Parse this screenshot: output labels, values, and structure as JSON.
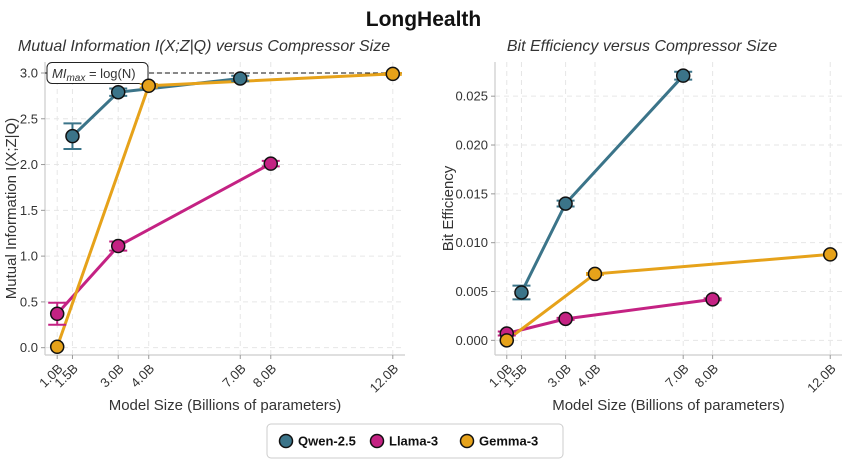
{
  "figure_title": "LongHealth",
  "chart_data": [
    {
      "type": "line",
      "title": "Mutual Information I(X;Z|Q) versus Compressor Size",
      "xlabel": "Model Size (Billions of parameters)",
      "ylabel": "Mutual Information I(X;Z|Q)",
      "xlim": [
        0.6,
        12.4
      ],
      "ylim": [
        -0.08,
        3.12
      ],
      "x_ticks": [
        1.0,
        1.5,
        3.0,
        4.0,
        7.0,
        8.0,
        12.0
      ],
      "x_tick_labels": [
        "1.0B",
        "1.5B",
        "3.0B",
        "4.0B",
        "7.0B",
        "8.0B",
        "12.0B"
      ],
      "y_ticks": [
        0.0,
        0.5,
        1.0,
        1.5,
        2.0,
        2.5,
        3.0
      ],
      "y_tick_labels": [
        "0.0",
        "0.5",
        "1.0",
        "1.5",
        "2.0",
        "2.5",
        "3.0"
      ],
      "grid": true,
      "reference_line": {
        "y": 3.0,
        "label": "MI",
        "label_sub": "max",
        "label_rest": " = log(N)"
      },
      "series": [
        {
          "name": "Qwen-2.5",
          "color": "#3b7489",
          "x": [
            1.5,
            3.0,
            7.0
          ],
          "values": [
            2.31,
            2.79,
            2.94
          ],
          "err": [
            0.14,
            0.04,
            0.03
          ]
        },
        {
          "name": "Llama-3",
          "color": "#c42283",
          "x": [
            1.0,
            3.0,
            8.0
          ],
          "values": [
            0.37,
            1.11,
            2.01
          ],
          "err": [
            0.12,
            0.05,
            0.03
          ]
        },
        {
          "name": "Gemma-3",
          "color": "#e6a21a",
          "x": [
            1.0,
            4.0,
            12.0
          ],
          "values": [
            0.01,
            2.86,
            2.99
          ],
          "err": [
            0.0,
            0.02,
            0.01
          ]
        }
      ]
    },
    {
      "type": "line",
      "title": "Bit Efficiency versus Compressor Size",
      "xlabel": "Model Size (Billions of parameters)",
      "ylabel": "Bit Efficiency",
      "xlim": [
        0.6,
        12.4
      ],
      "ylim": [
        -0.0015,
        0.0285
      ],
      "x_ticks": [
        1.0,
        1.5,
        3.0,
        4.0,
        7.0,
        8.0,
        12.0
      ],
      "x_tick_labels": [
        "1.0B",
        "1.5B",
        "3.0B",
        "4.0B",
        "7.0B",
        "8.0B",
        "12.0B"
      ],
      "y_ticks": [
        0.0,
        0.005,
        0.01,
        0.015,
        0.02,
        0.025
      ],
      "y_tick_labels": [
        "0.000",
        "0.005",
        "0.010",
        "0.015",
        "0.020",
        "0.025"
      ],
      "grid": true,
      "series": [
        {
          "name": "Qwen-2.5",
          "color": "#3b7489",
          "x": [
            1.5,
            3.0,
            7.0
          ],
          "values": [
            0.0049,
            0.014,
            0.0271
          ],
          "err": [
            0.0007,
            0.0003,
            0.0004
          ]
        },
        {
          "name": "Llama-3",
          "color": "#c42283",
          "x": [
            1.0,
            3.0,
            8.0
          ],
          "values": [
            0.0007,
            0.0022,
            0.0042
          ],
          "err": [
            0.0002,
            0.0001,
            0.0001
          ]
        },
        {
          "name": "Gemma-3",
          "color": "#e6a21a",
          "x": [
            1.0,
            4.0,
            12.0
          ],
          "values": [
            0.0,
            0.0068,
            0.0088
          ],
          "err": [
            0.0,
            0.0001,
            0.0
          ]
        }
      ]
    }
  ],
  "legend": {
    "items": [
      {
        "name": "Qwen-2.5",
        "color": "#3b7489"
      },
      {
        "name": "Llama-3",
        "color": "#c42283"
      },
      {
        "name": "Gemma-3",
        "color": "#e6a21a"
      }
    ]
  }
}
